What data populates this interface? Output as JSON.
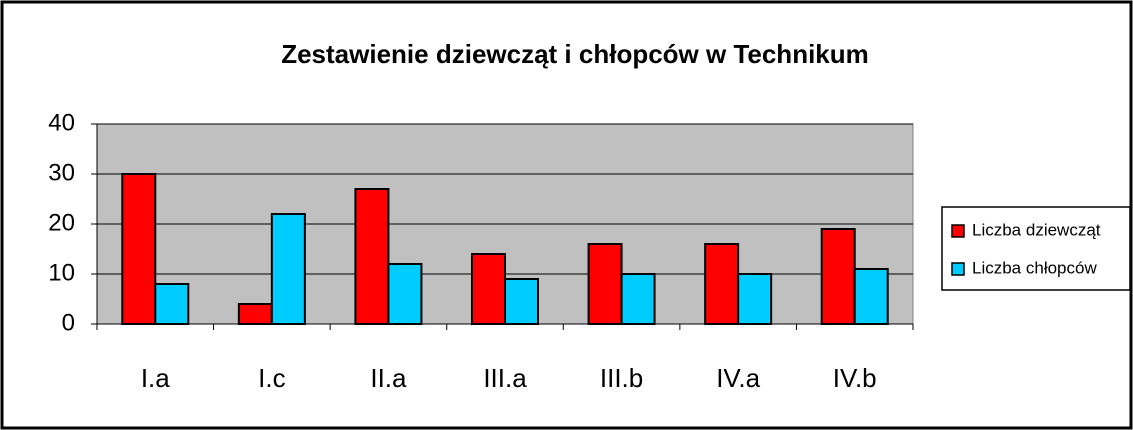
{
  "chart_data": {
    "type": "bar",
    "title": "Zestawienie dziewcząt i chłopców w Technikum",
    "categories": [
      "I.a",
      "I.c",
      "II.a",
      "III.a",
      "III.b",
      "IV.a",
      "IV.b"
    ],
    "series": [
      {
        "name": "Liczba dziewcząt",
        "color": "#ff0000",
        "values": [
          30,
          4,
          27,
          14,
          16,
          16,
          19
        ]
      },
      {
        "name": "Liczba chłopców",
        "color": "#00ccff",
        "values": [
          8,
          22,
          12,
          9,
          10,
          10,
          11
        ]
      }
    ],
    "ylim": [
      0,
      40
    ],
    "yticks": [
      0,
      10,
      20,
      30,
      40
    ],
    "grid": true,
    "legend": "right"
  }
}
